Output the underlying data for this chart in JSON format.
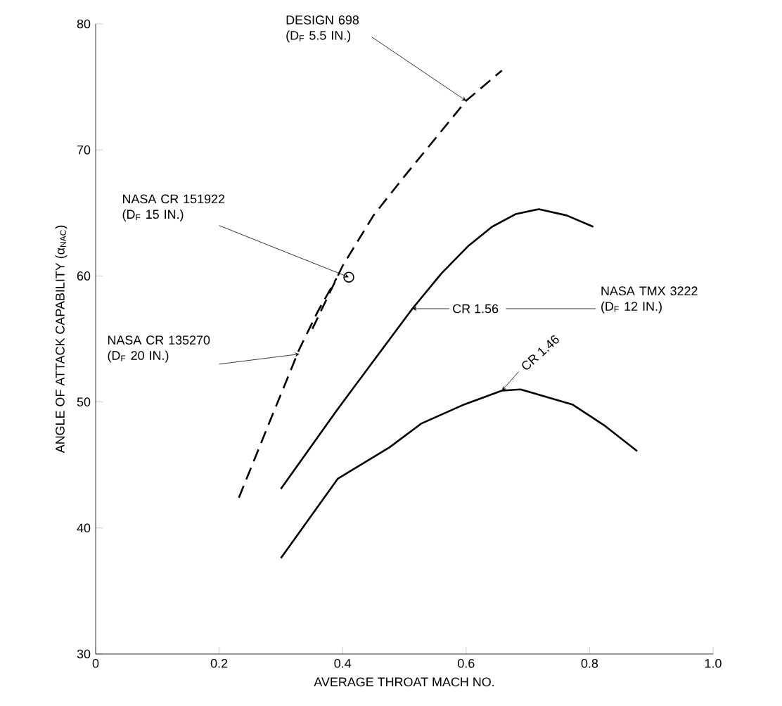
{
  "chart_data": {
    "type": "line",
    "xlabel": "AVERAGE THROAT MACH NO.",
    "ylabel": "ANGLE OF ATTACK CAPABILITY (α$_{NAC}$)",
    "xlim": [
      0,
      1.0
    ],
    "ylim": [
      30,
      80
    ],
    "xticks": [
      0,
      0.2,
      0.4,
      0.6,
      0.8,
      {
        "value": 1.0,
        "label": "1.0"
      }
    ],
    "yticks": [
      30,
      40,
      50,
      60,
      70,
      80
    ],
    "series": [
      {
        "color": "#000000",
        "line_style": "dashed",
        "x": [
          0.232,
          0.28,
          0.33,
          0.36,
          0.39
        ],
        "values": [
          42.4,
          48.2,
          54.2,
          57.2,
          59.8
        ]
      },
      {
        "color": "#000000",
        "line_style": "dashed",
        "x": [
          0.351,
          0.4,
          0.45,
          0.5,
          0.55,
          0.6,
          0.658
        ],
        "values": [
          55.8,
          60.8,
          64.8,
          67.9,
          70.9,
          73.9,
          76.3
        ]
      },
      {
        "type": "scatter",
        "color": "#000000",
        "marker": "circle",
        "x": [
          0.41
        ],
        "values": [
          59.9
        ]
      },
      {
        "color": "#000000",
        "line_style": "solid",
        "x": [
          0.3,
          0.39,
          0.478,
          0.513,
          0.56,
          0.604,
          0.642,
          0.68,
          0.718,
          0.763,
          0.806
        ],
        "values": [
          43.1,
          49.3,
          55.1,
          57.4,
          60.2,
          62.4,
          63.9,
          64.9,
          65.3,
          64.8,
          63.9
        ]
      },
      {
        "color": "#000000",
        "line_style": "solid",
        "x": [
          0.3,
          0.392,
          0.476,
          0.528,
          0.597,
          0.658,
          0.688,
          0.772,
          0.825,
          0.877
        ],
        "values": [
          37.6,
          43.9,
          46.4,
          48.3,
          49.8,
          50.9,
          51.0,
          49.8,
          48.1,
          46.1
        ]
      }
    ],
    "annotations": [
      {
        "text": "DESIGN 698 (D$_{F}$ 5.5 IN.)",
        "x": 0.6,
        "y": 73.9
      },
      {
        "text": "NASA CR 151922 (D$_{F}$ 15 IN.)",
        "x": 0.41,
        "y": 59.9
      },
      {
        "text": "NASA CR 135270 (D$_{F}$ 20 IN.)",
        "x": 0.33,
        "y": 53.8
      },
      "CR 1.56",
      {
        "text": "CR 1.46",
        "x": 0.658,
        "y": 50.9
      },
      "NASA TMX 3222 (D$_{F}$ 12 IN.)"
    ]
  }
}
